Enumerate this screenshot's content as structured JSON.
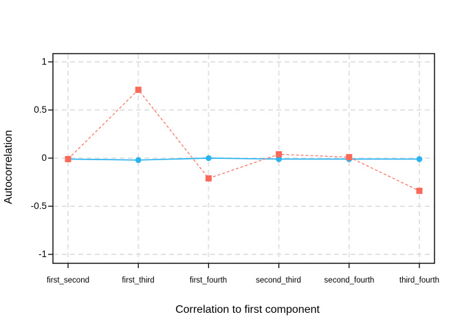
{
  "chart_data": {
    "type": "line",
    "title": "",
    "xlabel": "Correlation to first component",
    "ylabel": "Autocorrelation",
    "categories": [
      "first_second",
      "first_third",
      "first_fourth",
      "second_third",
      "second_fourth",
      "third_fourth"
    ],
    "series": [
      {
        "name": "blue-solid-circles",
        "marker": "circle",
        "line": "solid",
        "color": "#29B3F0",
        "values": [
          -0.01,
          -0.02,
          0.0,
          -0.01,
          -0.01,
          -0.01
        ]
      },
      {
        "name": "red-dashed-squares",
        "marker": "square",
        "line": "dashed",
        "color": "#F8695A",
        "values": [
          -0.01,
          0.71,
          -0.21,
          0.04,
          0.01,
          -0.34
        ]
      }
    ],
    "yticks": [
      1,
      0.5,
      0,
      -0.5,
      -1
    ],
    "ytick_labels": [
      "1",
      "0.5",
      "0",
      "-0.5",
      "-1"
    ],
    "ylim": [
      -1.09,
      1.09
    ],
    "grid": "dashed-both-axes",
    "legend_position": "none",
    "colors": {
      "grid": "#E3E3E3",
      "frame": "#000000",
      "background": "#FFFFFF"
    }
  }
}
